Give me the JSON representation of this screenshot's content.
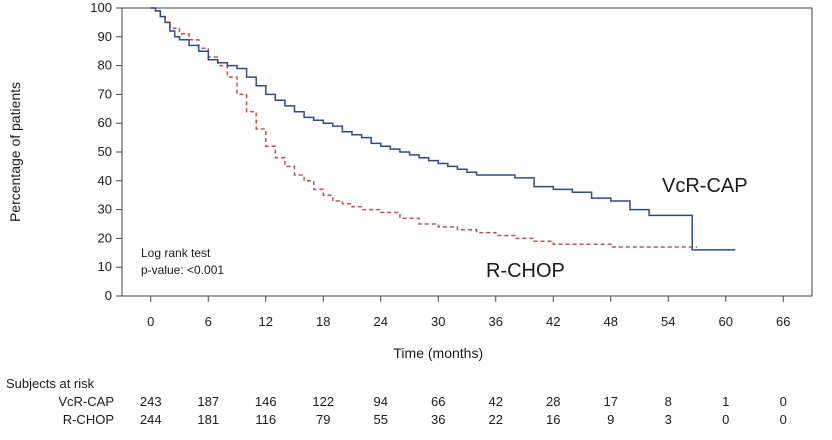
{
  "chart_data": {
    "type": "line",
    "title": "",
    "xlabel": "Time (months)",
    "ylabel": "Percentage of patients",
    "xlim": [
      -3,
      69
    ],
    "ylim": [
      0,
      100
    ],
    "x_ticks": [
      0,
      6,
      12,
      18,
      24,
      30,
      36,
      42,
      48,
      54,
      60,
      66
    ],
    "y_ticks": [
      0,
      10,
      20,
      30,
      40,
      50,
      60,
      70,
      80,
      90,
      100
    ],
    "grid": false,
    "annotation": {
      "line1": "Log rank test",
      "line2": "p-value: <0.001"
    },
    "series": [
      {
        "name": "VcR-CAP",
        "color": "#2f4a8c",
        "style": "solid",
        "step": true,
        "x": [
          0,
          0.5,
          1,
          1.5,
          2,
          2.5,
          3,
          4,
          5,
          6,
          7,
          8,
          9,
          10,
          11,
          12,
          13,
          14,
          15,
          16,
          17,
          18,
          19,
          20,
          21,
          22,
          23,
          24,
          25,
          26,
          27,
          28,
          29,
          30,
          31,
          32,
          33,
          34,
          36,
          38,
          40,
          42,
          44,
          46,
          48,
          50,
          52,
          54,
          56,
          56.5,
          58,
          61
        ],
        "y": [
          100,
          99,
          97,
          95,
          92,
          90,
          89,
          87,
          85,
          82,
          81,
          80,
          79,
          76,
          73,
          70,
          68,
          66,
          64,
          62,
          61,
          60,
          59,
          57,
          56,
          55,
          53,
          52,
          51,
          50,
          49,
          48,
          47,
          46,
          45,
          44,
          43,
          42,
          42,
          41,
          38,
          37,
          36,
          34,
          33,
          30,
          28,
          28,
          28,
          16,
          16,
          16
        ]
      },
      {
        "name": "R-CHOP",
        "color": "#c0504d",
        "style": "dashed",
        "step": true,
        "x": [
          0,
          0.5,
          1,
          1.5,
          2,
          3,
          4,
          5,
          6,
          7,
          8,
          9,
          10,
          11,
          12,
          13,
          14,
          15,
          16,
          17,
          18,
          19,
          20,
          21,
          22,
          24,
          26,
          28,
          30,
          32,
          34,
          36,
          38,
          40,
          42,
          44,
          46,
          48,
          50,
          52,
          54,
          56,
          57
        ],
        "y": [
          100,
          99,
          97,
          95,
          93,
          91,
          89,
          86,
          83,
          80,
          76,
          70,
          64,
          58,
          52,
          48,
          45,
          42,
          40,
          37,
          35,
          33,
          32,
          31,
          30,
          29,
          27,
          25,
          24,
          23,
          22,
          21,
          20,
          19,
          18,
          18,
          18,
          17,
          17,
          17,
          17,
          17,
          17
        ]
      }
    ],
    "series_labels": {
      "vcr_cap": "VcR-CAP",
      "r_chop": "R-CHOP"
    },
    "risk_table": {
      "title": "Subjects at risk",
      "rows": [
        {
          "name": "VcR-CAP",
          "values": [
            "243",
            "187",
            "146",
            "122",
            "94",
            "66",
            "42",
            "28",
            "17",
            "8",
            "1",
            "0"
          ]
        },
        {
          "name": "R-CHOP",
          "values": [
            "244",
            "181",
            "116",
            "79",
            "55",
            "36",
            "22",
            "16",
            "9",
            "3",
            "0",
            "0"
          ]
        }
      ]
    }
  }
}
